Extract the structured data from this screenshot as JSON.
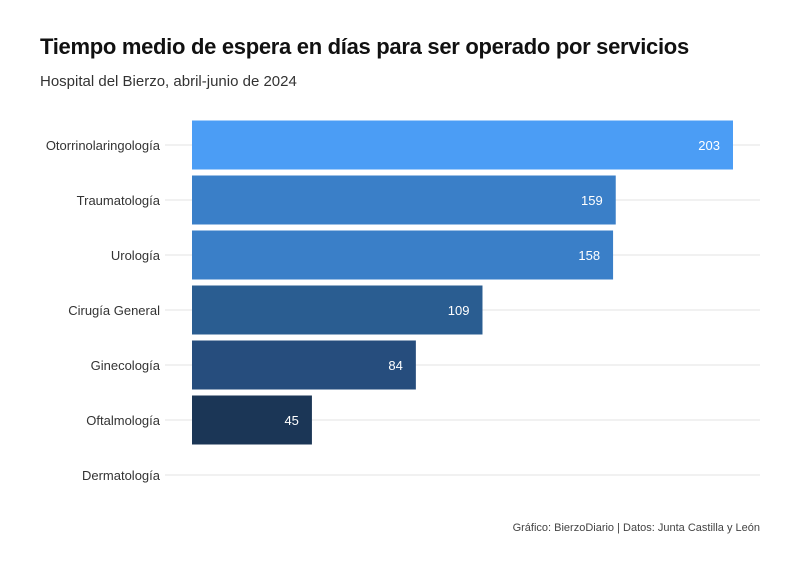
{
  "title": "Tiempo medio de espera en días para ser operado por servicios",
  "subtitle": "Hospital del Bierzo, abril-junio de 2024",
  "caption": "Gráfico: BierzoDiario | Datos: Junta Castilla y León",
  "chart_data": {
    "type": "bar",
    "orientation": "horizontal",
    "title": "Tiempo medio de espera en días para ser operado por servicios",
    "subtitle": "Hospital del Bierzo, abril-junio de 2024",
    "xlabel": "",
    "ylabel": "",
    "categories": [
      "Otorrinolaringología",
      "Traumatología",
      "Urología",
      "Cirugía General",
      "Ginecología",
      "Oftalmología",
      "Dermatología"
    ],
    "values": [
      203,
      159,
      158,
      109,
      84,
      45,
      0
    ],
    "data_labels": [
      "203",
      "159",
      "158",
      "109",
      "84",
      "45",
      ""
    ],
    "colors": [
      "#4b9df5",
      "#3a7fc8",
      "#3a7fc8",
      "#2a5d91",
      "#264d7d",
      "#1b3656",
      "#1b3656"
    ],
    "xlim": [
      0,
      215
    ],
    "grid": "horizontal lines at categories",
    "legend": "none"
  }
}
